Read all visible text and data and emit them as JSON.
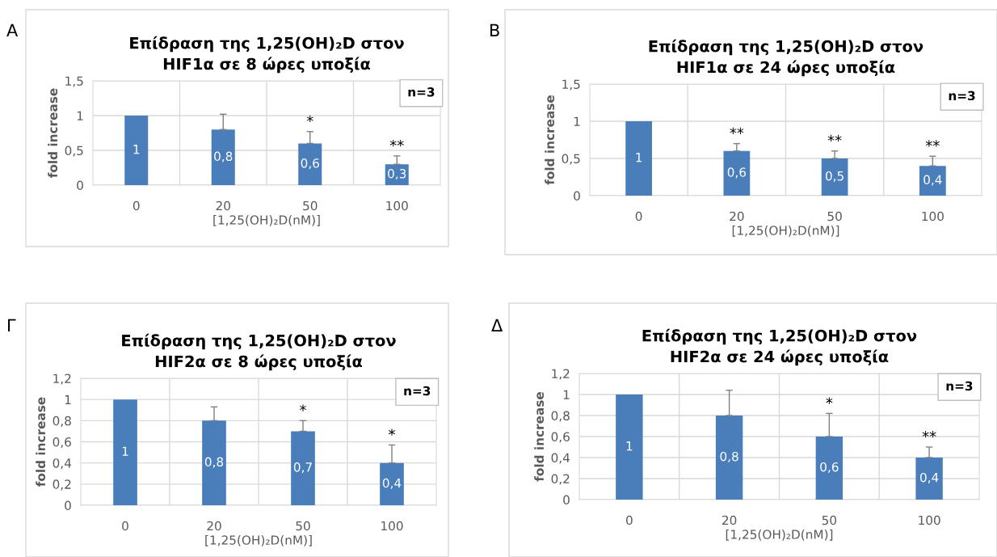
{
  "chart_data": [
    {
      "type": "bar",
      "title": "Επίδραση της 1,25(OH)₂D στον\nHIF1α σε 8 ώρες υποξία",
      "xlabel": "[1,25(OH)₂D(nM)]",
      "ylabel": "fold increase",
      "categories": [
        "0",
        "20",
        "50",
        "100"
      ],
      "color": "#4a7ebb",
      "values": [
        1,
        0.8,
        0.6,
        0.3
      ],
      "value_labels": [
        "1",
        "0,8",
        "0,6",
        "0,3"
      ],
      "errors": [
        null,
        [
          0.8,
          1.02
        ],
        [
          0.6,
          0.77
        ],
        [
          0.3,
          0.42
        ]
      ],
      "ylim": [
        0,
        1.5
      ],
      "yticks": [
        0,
        {
          "value": 0.5,
          "label": "0,5"
        },
        1,
        {
          "value": 1.5,
          "label": "1,5"
        }
      ],
      "grid": true,
      "annotations": [
        "A",
        "n=3",
        {
          "text": "*",
          "x": "50",
          "y": 0.77
        },
        {
          "text": "**",
          "x": "100",
          "y": 0.42
        }
      ]
    },
    {
      "type": "bar",
      "title": "Επίδραση της 1,25(OH)₂D στον\nHIF1α σε 24 ώρες υποξία",
      "xlabel": "[1,25(OH)₂D(nM)]",
      "ylabel": "fold increase",
      "categories": [
        "0",
        "20",
        "50",
        "100"
      ],
      "color": "#4a7ebb",
      "values": [
        1,
        0.6,
        0.5,
        0.4
      ],
      "value_labels": [
        "1",
        "0,6",
        "0,5",
        "0,4"
      ],
      "errors": [
        null,
        [
          0.6,
          0.7
        ],
        [
          0.5,
          0.6
        ],
        [
          0.4,
          0.53
        ]
      ],
      "ylim": [
        0,
        1.5
      ],
      "yticks": [
        0,
        {
          "value": 0.5,
          "label": "0,5"
        },
        1,
        {
          "value": 1.5,
          "label": "1,5"
        }
      ],
      "grid": true,
      "annotations": [
        "B",
        "n=3",
        {
          "text": "**",
          "x": "20",
          "y": 0.7
        },
        {
          "text": "**",
          "x": "50",
          "y": 0.6
        },
        {
          "text": "**",
          "x": "100",
          "y": 0.53
        }
      ]
    },
    {
      "type": "bar",
      "title": "Επίδραση της 1,25(OH)₂D στον\nHIF2α σε 8 ώρες υποξία",
      "xlabel": "[1,25(OH)₂D(nM)]",
      "ylabel": "fold increase",
      "categories": [
        "0",
        "20",
        "50",
        "100"
      ],
      "color": "#4a7ebb",
      "values": [
        1,
        0.8,
        0.7,
        0.4
      ],
      "value_labels": [
        "1",
        "0,8",
        "0,7",
        "0,4"
      ],
      "errors": [
        null,
        [
          0.8,
          0.93
        ],
        [
          0.7,
          0.8
        ],
        [
          0.4,
          0.57
        ]
      ],
      "ylim": [
        0,
        1.2
      ],
      "yticks": [
        0,
        {
          "value": 0.2,
          "label": "0,2"
        },
        {
          "value": 0.4,
          "label": "0,4"
        },
        {
          "value": 0.6,
          "label": "0,6"
        },
        {
          "value": 0.8,
          "label": "0,8"
        },
        1,
        {
          "value": 1.2,
          "label": "1,2"
        }
      ],
      "grid": true,
      "annotations": [
        "Γ",
        "n=3",
        {
          "text": "*",
          "x": "50",
          "y": 0.8
        },
        {
          "text": "*",
          "x": "100",
          "y": 0.57
        }
      ]
    },
    {
      "type": "bar",
      "title": "Επίδραση της 1,25(OH)₂D στον\nHIF2α σε 24 ώρες υποξία",
      "xlabel": "[1,25(OH)₂D(nM)]",
      "ylabel": "fold increase",
      "categories": [
        "0",
        "20",
        "50",
        "100"
      ],
      "color": "#4a7ebb",
      "values": [
        1,
        0.8,
        0.6,
        0.4
      ],
      "value_labels": [
        "1",
        "0,8",
        "0,6",
        "0,4"
      ],
      "errors": [
        null,
        [
          0.8,
          1.04
        ],
        [
          0.6,
          0.82
        ],
        [
          0.4,
          0.5
        ]
      ],
      "ylim": [
        0,
        1.2
      ],
      "yticks": [
        0,
        {
          "value": 0.2,
          "label": "0,2"
        },
        {
          "value": 0.4,
          "label": "0,4"
        },
        {
          "value": 0.6,
          "label": "0,6"
        },
        {
          "value": 0.8,
          "label": "0,8"
        },
        1,
        {
          "value": 1.2,
          "label": "1,2"
        }
      ],
      "grid": true,
      "annotations": [
        "Δ",
        "n=3",
        {
          "text": "**",
          "x": "100",
          "y": 0.5
        },
        {
          "text": "*",
          "x": "50",
          "y": 0.82
        }
      ]
    }
  ]
}
